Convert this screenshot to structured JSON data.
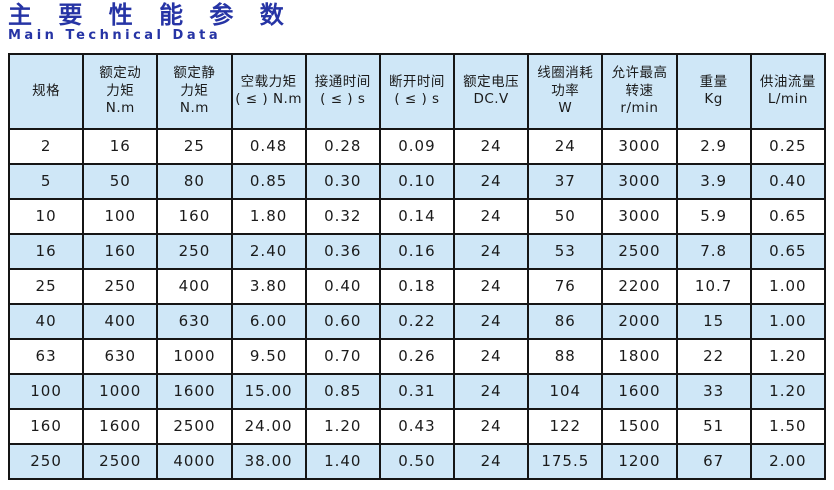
{
  "page": {
    "title": "主 要 性 能 参 数",
    "subtitle": "Main Technical Data"
  },
  "colors": {
    "title_blue": "#2634a5",
    "cell_blue": "#cfe7f7",
    "grid_black": "#151515",
    "row_white": "#ffffff"
  },
  "table": {
    "headers": [
      "规格",
      "额定动\n力矩\nN.m",
      "额定静\n力矩\nN.m",
      "空载力矩\n( ≤ ) N.m",
      "接通时间\n( ≤ ) s",
      "断开时间\n( ≤ ) s",
      "额定电压\nDC.V",
      "线圈消耗\n功率\nW",
      "允许最高\n转速\nr/min",
      "重量\nKg",
      "供油流量\nL/min"
    ],
    "rows": [
      [
        "2",
        "16",
        "25",
        "0.48",
        "0.28",
        "0.09",
        "24",
        "24",
        "3000",
        "2.9",
        "0.25"
      ],
      [
        "5",
        "50",
        "80",
        "0.85",
        "0.30",
        "0.10",
        "24",
        "37",
        "3000",
        "3.9",
        "0.40"
      ],
      [
        "10",
        "100",
        "160",
        "1.80",
        "0.32",
        "0.14",
        "24",
        "50",
        "3000",
        "5.9",
        "0.65"
      ],
      [
        "16",
        "160",
        "250",
        "2.40",
        "0.36",
        "0.16",
        "24",
        "53",
        "2500",
        "7.8",
        "0.65"
      ],
      [
        "25",
        "250",
        "400",
        "3.80",
        "0.40",
        "0.18",
        "24",
        "76",
        "2200",
        "10.7",
        "1.00"
      ],
      [
        "40",
        "400",
        "630",
        "6.00",
        "0.60",
        "0.22",
        "24",
        "86",
        "2000",
        "15",
        "1.00"
      ],
      [
        "63",
        "630",
        "1000",
        "9.50",
        "0.70",
        "0.26",
        "24",
        "88",
        "1800",
        "22",
        "1.20"
      ],
      [
        "100",
        "1000",
        "1600",
        "15.00",
        "0.85",
        "0.31",
        "24",
        "104",
        "1600",
        "33",
        "1.20"
      ],
      [
        "160",
        "1600",
        "2500",
        "24.00",
        "1.20",
        "0.43",
        "24",
        "122",
        "1500",
        "51",
        "1.50"
      ],
      [
        "250",
        "2500",
        "4000",
        "38.00",
        "1.40",
        "0.50",
        "24",
        "175.5",
        "1200",
        "67",
        "2.00"
      ]
    ]
  }
}
